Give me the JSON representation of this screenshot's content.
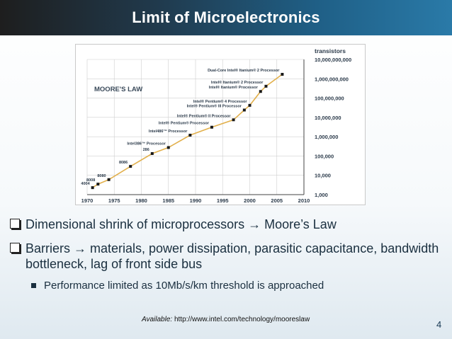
{
  "slide": {
    "title": "Limit of Microelectronics",
    "page_number": "4",
    "source_label": "Available:",
    "source_url": "http://www.intel.com/technology/mooreslaw"
  },
  "bullets": [
    {
      "text": "Dimensional shrink of microprocessors → Moore’s Law"
    },
    {
      "text": "Barriers → materials, power dissipation, parasitic capacitance, bandwidth bottleneck, lag of front side bus",
      "sub": "Performance limited as 10Mb/s/km threshold is approached"
    }
  ],
  "chart_data": {
    "type": "line",
    "title": "MOORE'S LAW",
    "ylabel": "transistors",
    "xlim": [
      1970,
      2010
    ],
    "ylim": [
      1000,
      10000000000
    ],
    "yscale": "log",
    "grid": true,
    "x_ticks": [
      "1970",
      "1975",
      "1980",
      "1985",
      "1990",
      "1995",
      "2000",
      "2005",
      "2010"
    ],
    "y_ticks": [
      "10,000,000,000",
      "1,000,000,000",
      "100,000,000",
      "10,000,000",
      "1,000,000",
      "100,000",
      "10,000",
      "1,000"
    ],
    "points": [
      {
        "label": "4004",
        "x": 1971,
        "y": 2300
      },
      {
        "label": "8008",
        "x": 1972,
        "y": 3500
      },
      {
        "label": "8080",
        "x": 1974,
        "y": 6000
      },
      {
        "label": "8086",
        "x": 1978,
        "y": 29000
      },
      {
        "label": "286",
        "x": 1982,
        "y": 134000
      },
      {
        "label": "Intel386™ Processor",
        "x": 1985,
        "y": 275000
      },
      {
        "label": "Intel486™ Processor",
        "x": 1989,
        "y": 1200000
      },
      {
        "label": "Intel® Pentium® Processor",
        "x": 1993,
        "y": 3100000
      },
      {
        "label": "Intel® Pentium® II Processor",
        "x": 1997,
        "y": 7500000
      },
      {
        "label": "Intel® Pentium® III Processor",
        "x": 1999,
        "y": 24000000
      },
      {
        "label": "Intel® Pentium® 4 Processor",
        "x": 2000,
        "y": 42000000
      },
      {
        "label": "Intel® Itanium® Processor",
        "x": 2002,
        "y": 220000000
      },
      {
        "label": "Intel® Itanium® 2 Processor",
        "x": 2003,
        "y": 410000000
      },
      {
        "label": "Dual-Core Intel® Itanium® 2 Processor",
        "x": 2006,
        "y": 1700000000
      }
    ],
    "colors": {
      "line": "#e2b04c",
      "marker": "#1a1a1a",
      "grid": "#cfcfcf",
      "text": "#2b3a4a"
    }
  }
}
